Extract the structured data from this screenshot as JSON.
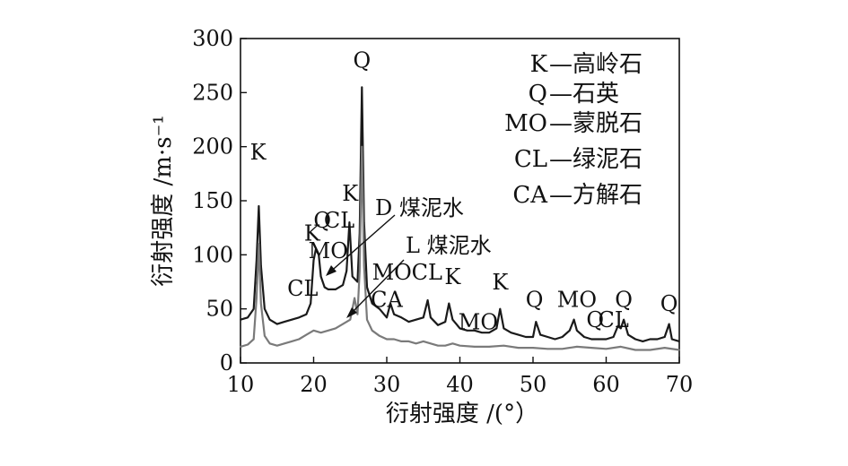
{
  "chart_data": {
    "type": "line",
    "xlabel": "衍射强度 /(°）",
    "ylabel": "衍射强度 /m·s⁻¹",
    "xlim": [
      10,
      70
    ],
    "ylim": [
      0,
      300
    ],
    "xticks": [
      "10",
      "20",
      "30",
      "40",
      "50",
      "60",
      "70"
    ],
    "yticks": [
      "0",
      "50",
      "100",
      "150",
      "200",
      "250",
      "300"
    ],
    "grid": false,
    "legend_position": "top-right",
    "legend": [
      {
        "code": "K",
        "name": "—高岭石"
      },
      {
        "code": "Q",
        "name": "—石英"
      },
      {
        "code": "MO",
        "name": "—蒙脱石"
      },
      {
        "code": "CL",
        "name": "—绿泥石"
      },
      {
        "code": "CA",
        "name": "—方解石"
      }
    ],
    "series_labels": [
      {
        "text": "D 煤泥水"
      },
      {
        "text": "L 煤泥水"
      }
    ],
    "peak_labels": [
      {
        "text": "K",
        "x": 12.4,
        "y": 188
      },
      {
        "text": "CL",
        "x": 18.5,
        "y": 62
      },
      {
        "text": "K",
        "x": 19.8,
        "y": 113
      },
      {
        "text": "Q",
        "x": 21.2,
        "y": 125
      },
      {
        "text": "CL",
        "x": 23.5,
        "y": 125
      },
      {
        "text": "MO",
        "x": 22.0,
        "y": 97
      },
      {
        "text": "K",
        "x": 25.0,
        "y": 150
      },
      {
        "text": "Q",
        "x": 26.6,
        "y": 273
      },
      {
        "text": "MO",
        "x": 30.7,
        "y": 77
      },
      {
        "text": "CL",
        "x": 35.5,
        "y": 77
      },
      {
        "text": "K",
        "x": 39.0,
        "y": 73
      },
      {
        "text": "CA",
        "x": 30.0,
        "y": 52
      },
      {
        "text": "MO",
        "x": 42.5,
        "y": 31
      },
      {
        "text": "K",
        "x": 45.5,
        "y": 68
      },
      {
        "text": "Q",
        "x": 50.2,
        "y": 52
      },
      {
        "text": "MO",
        "x": 56.0,
        "y": 52
      },
      {
        "text": "Q",
        "x": 58.5,
        "y": 33
      },
      {
        "text": "CL",
        "x": 61.0,
        "y": 33
      },
      {
        "text": "Q",
        "x": 62.4,
        "y": 52
      },
      {
        "text": "Q",
        "x": 68.6,
        "y": 48
      }
    ],
    "series": [
      {
        "color": "#1a1a1a",
        "x": [
          10,
          11,
          11.8,
          12.2,
          12.5,
          12.8,
          13.3,
          14,
          15,
          16,
          17,
          18,
          19,
          19.6,
          20,
          20.3,
          20.7,
          21,
          21.5,
          22,
          23,
          24,
          24.5,
          24.9,
          25.3,
          26,
          26.3,
          26.6,
          26.9,
          27.3,
          28,
          29,
          30,
          30.5,
          31,
          32,
          33,
          34,
          35,
          35.6,
          36,
          37,
          38,
          38.5,
          39,
          40,
          41,
          42,
          43,
          44,
          45,
          45.5,
          46,
          47,
          48,
          49,
          50,
          50.4,
          51,
          52,
          53,
          54,
          55,
          55.6,
          56,
          57,
          58,
          59,
          60,
          61,
          61.6,
          62,
          62.4,
          63,
          64,
          65,
          66,
          67,
          68,
          68.6,
          69,
          70
        ],
        "y": [
          40,
          42,
          50,
          95,
          145,
          90,
          50,
          40,
          36,
          38,
          40,
          42,
          45,
          55,
          95,
          105,
          100,
          80,
          70,
          68,
          68,
          72,
          85,
          130,
          80,
          75,
          120,
          255,
          130,
          70,
          55,
          50,
          42,
          55,
          45,
          42,
          38,
          40,
          42,
          58,
          42,
          35,
          38,
          55,
          40,
          32,
          30,
          30,
          28,
          28,
          32,
          50,
          32,
          28,
          26,
          24,
          24,
          38,
          26,
          24,
          22,
          24,
          30,
          40,
          30,
          24,
          22,
          22,
          22,
          24,
          34,
          32,
          40,
          26,
          22,
          20,
          22,
          22,
          24,
          36,
          22,
          20
        ]
      },
      {
        "color": "#7a7a7a",
        "x": [
          10,
          11,
          11.8,
          12.2,
          12.5,
          12.8,
          13.3,
          14,
          15,
          16,
          17,
          18,
          19,
          20,
          21,
          22,
          23,
          24,
          25,
          25.6,
          26,
          26.3,
          26.6,
          26.9,
          27.3,
          28,
          29,
          30,
          31,
          32,
          33,
          34,
          35,
          36,
          37,
          38,
          39,
          40,
          42,
          44,
          46,
          48,
          50,
          52,
          54,
          56,
          58,
          60,
          62,
          64,
          66,
          68,
          70
        ],
        "y": [
          15,
          17,
          22,
          60,
          110,
          55,
          25,
          18,
          16,
          18,
          20,
          22,
          26,
          30,
          28,
          30,
          32,
          36,
          40,
          60,
          45,
          85,
          200,
          90,
          40,
          30,
          25,
          22,
          22,
          20,
          20,
          18,
          20,
          18,
          16,
          16,
          18,
          16,
          15,
          15,
          16,
          14,
          14,
          13,
          13,
          15,
          14,
          13,
          15,
          12,
          12,
          14,
          12
        ]
      }
    ]
  }
}
